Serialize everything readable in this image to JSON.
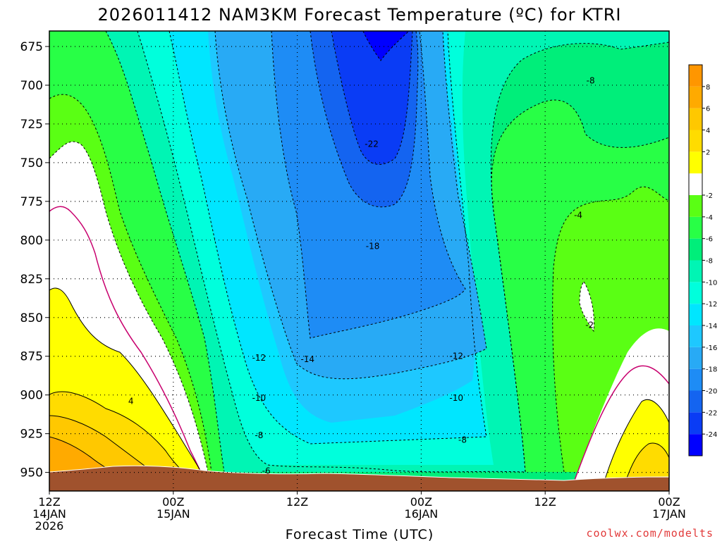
{
  "title": "2026011412 NAM3KM Forecast Temperature (ºC) for KTRI",
  "credit": "coolwx.com/modelts",
  "chart_data": {
    "type": "contour",
    "title": "2026011412 NAM3KM Forecast Temperature (ºC) for KTRI",
    "xlabel": "Forecast Time (UTC)",
    "ylabel": "",
    "y_scale": "pressure (hPa), increasing downward",
    "ylim": [
      665,
      962
    ],
    "xlim_hours": [
      0,
      60
    ],
    "yticks": [
      675,
      700,
      725,
      750,
      775,
      800,
      825,
      850,
      875,
      900,
      925,
      950
    ],
    "xticks": [
      {
        "hour": 0,
        "line1": "12Z",
        "line2": "14JAN",
        "line3": "2026"
      },
      {
        "hour": 12,
        "line1": "00Z",
        "line2": "15JAN",
        "line3": ""
      },
      {
        "hour": 24,
        "line1": "12Z",
        "line2": "",
        "line3": ""
      },
      {
        "hour": 36,
        "line1": "00Z",
        "line2": "16JAN",
        "line3": ""
      },
      {
        "hour": 48,
        "line1": "12Z",
        "line2": "",
        "line3": ""
      },
      {
        "hour": 60,
        "line1": "00Z",
        "line2": "17JAN",
        "line3": ""
      }
    ],
    "grid": true,
    "colorbar": {
      "placement": "right",
      "levels": [
        -26,
        -24,
        -22,
        -20,
        -18,
        -16,
        -14,
        -12,
        -10,
        -8,
        -6,
        -4,
        -2,
        0,
        2,
        4,
        6,
        8,
        10
      ],
      "colors": [
        "#0000ff",
        "#0a3cf5",
        "#1464f0",
        "#1e8cf5",
        "#28aaf5",
        "#1ec8ff",
        "#00e6ff",
        "#00ffdc",
        "#00f5b4",
        "#00ee7a",
        "#28ff46",
        "#5aff14",
        "#ffffff",
        "#ffff00",
        "#ffdc00",
        "#ffc800",
        "#ffaa00",
        "#ff9600"
      ],
      "labels": [
        "-24",
        "-22",
        "-20",
        "-18",
        "-16",
        "-14",
        "-12",
        "-10",
        "-8",
        "-6",
        "-4",
        "-2",
        "2",
        "4",
        "6",
        "8"
      ]
    },
    "contour_labels": [
      {
        "text": "-22",
        "hour": 31.2,
        "p": 738
      },
      {
        "text": "-18",
        "hour": 31.3,
        "p": 804
      },
      {
        "text": "-14",
        "hour": 25.0,
        "p": 877
      },
      {
        "text": "-12",
        "hour": 20.3,
        "p": 876
      },
      {
        "text": "-12",
        "hour": 39.4,
        "p": 875
      },
      {
        "text": "-10",
        "hour": 20.3,
        "p": 902
      },
      {
        "text": "-10",
        "hour": 39.4,
        "p": 902
      },
      {
        "text": "-8",
        "hour": 20.3,
        "p": 926
      },
      {
        "text": "-8",
        "hour": 40.0,
        "p": 929
      },
      {
        "text": "-6",
        "hour": 21.0,
        "p": 949
      },
      {
        "text": "-8",
        "hour": 52.4,
        "p": 697
      },
      {
        "text": "-4",
        "hour": 51.2,
        "p": 784
      },
      {
        "text": "-2",
        "hour": 52.3,
        "p": 855
      },
      {
        "text": "4",
        "hour": 7.9,
        "p": 904
      }
    ]
  }
}
